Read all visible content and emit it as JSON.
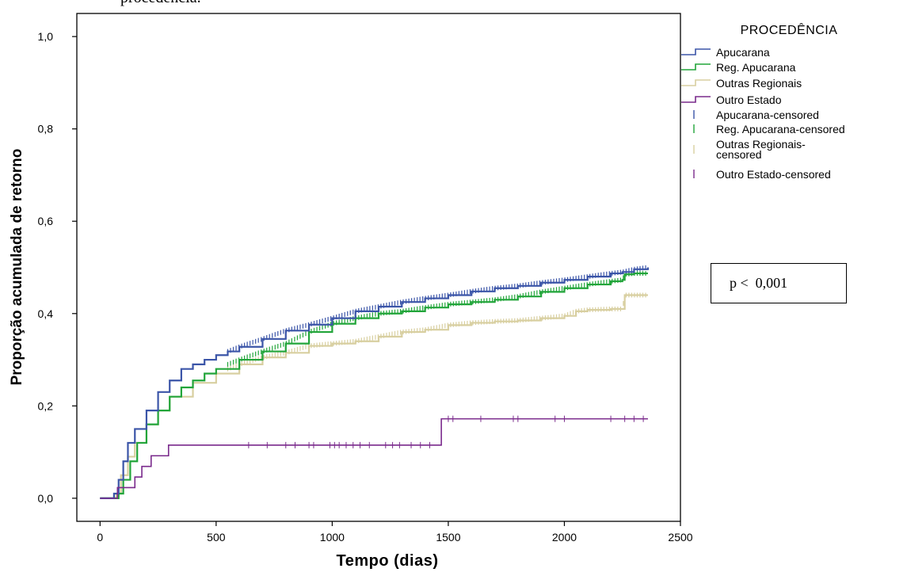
{
  "caption_fragment": "procedência.",
  "annotation": "p <  0,001",
  "colors": {
    "apucarana": "#3b55a8",
    "reg_apucarana": "#22a53a",
    "outras_regionais": "#d8cfa0",
    "outro_estado": "#7a2a8c"
  },
  "chart_data": {
    "type": "line",
    "xlabel": "Tempo (dias)",
    "ylabel": "Proporção acumulada de retorno",
    "xlim": [
      -100,
      2500
    ],
    "ylim": [
      -0.05,
      1.05
    ],
    "xticks": [
      0,
      500,
      1000,
      1500,
      2000,
      2500
    ],
    "xtick_labels": [
      "0",
      "500",
      "1000",
      "1500",
      "2000",
      "2500"
    ],
    "yticks": [
      0.0,
      0.2,
      0.4,
      0.6,
      0.8,
      1.0
    ],
    "ytick_labels": [
      "0,0",
      "0,2",
      "0,4",
      "0,6",
      "0,8",
      "1,0"
    ],
    "grid": false,
    "legend_title": "PROCEDÊNCIA",
    "legend_position": "right",
    "legend": [
      {
        "label": "Apucarana",
        "kind": "line",
        "series": 0
      },
      {
        "label": "Reg. Apucarana",
        "kind": "line",
        "series": 1
      },
      {
        "label": "Outras Regionais",
        "kind": "line",
        "series": 2
      },
      {
        "label": "Outro Estado",
        "kind": "line",
        "series": 3
      },
      {
        "label": "Apucarana-censored",
        "kind": "censor",
        "series": 0
      },
      {
        "label": "Reg. Apucarana-censored",
        "kind": "censor",
        "series": 1
      },
      {
        "label": "Outras Regionais-\ncensored",
        "kind": "censor",
        "series": 2
      },
      {
        "label": "Outro Estado-censored",
        "kind": "censor",
        "series": 3
      }
    ],
    "series": [
      {
        "name": "Apucarana",
        "color": "#3b55a8",
        "x": [
          0,
          60,
          80,
          100,
          120,
          150,
          200,
          250,
          300,
          350,
          400,
          450,
          500,
          550,
          600,
          700,
          800,
          900,
          1000,
          1100,
          1200,
          1300,
          1400,
          1500,
          1600,
          1700,
          1800,
          1900,
          2000,
          2100,
          2200,
          2250,
          2300,
          2360
        ],
        "y": [
          0.0,
          0.01,
          0.04,
          0.08,
          0.12,
          0.15,
          0.19,
          0.23,
          0.255,
          0.28,
          0.29,
          0.3,
          0.31,
          0.318,
          0.328,
          0.345,
          0.363,
          0.376,
          0.39,
          0.405,
          0.415,
          0.425,
          0.433,
          0.44,
          0.448,
          0.455,
          0.46,
          0.467,
          0.473,
          0.48,
          0.487,
          0.49,
          0.496,
          0.5
        ],
        "censor_from_x": 550
      },
      {
        "name": "Reg. Apucarana",
        "color": "#22a53a",
        "x": [
          0,
          80,
          100,
          130,
          160,
          200,
          250,
          300,
          350,
          400,
          450,
          500,
          600,
          700,
          800,
          900,
          1000,
          1100,
          1200,
          1300,
          1400,
          1500,
          1600,
          1700,
          1800,
          1900,
          2000,
          2100,
          2200,
          2250,
          2260,
          2300,
          2360
        ],
        "y": [
          0.0,
          0.01,
          0.04,
          0.08,
          0.12,
          0.16,
          0.19,
          0.22,
          0.24,
          0.255,
          0.27,
          0.28,
          0.3,
          0.318,
          0.335,
          0.36,
          0.378,
          0.39,
          0.4,
          0.405,
          0.413,
          0.42,
          0.425,
          0.43,
          0.437,
          0.447,
          0.455,
          0.463,
          0.47,
          0.473,
          0.485,
          0.487,
          0.487
        ],
        "censor_from_x": 550
      },
      {
        "name": "Outras Regionais",
        "color": "#d8cfa0",
        "x": [
          0,
          70,
          90,
          120,
          150,
          200,
          250,
          300,
          400,
          500,
          600,
          700,
          800,
          900,
          1000,
          1100,
          1200,
          1300,
          1400,
          1500,
          1600,
          1700,
          1800,
          1900,
          2000,
          2050,
          2100,
          2200,
          2250,
          2260,
          2360
        ],
        "y": [
          0.0,
          0.01,
          0.05,
          0.09,
          0.12,
          0.16,
          0.19,
          0.22,
          0.25,
          0.27,
          0.29,
          0.305,
          0.315,
          0.33,
          0.335,
          0.34,
          0.35,
          0.36,
          0.365,
          0.375,
          0.38,
          0.383,
          0.385,
          0.39,
          0.395,
          0.405,
          0.408,
          0.41,
          0.41,
          0.44,
          0.44
        ],
        "censor_from_x": 550
      },
      {
        "name": "Outro Estado",
        "color": "#7a2a8c",
        "steps": [
          [
            0,
            0.0
          ],
          [
            75,
            0.023
          ],
          [
            150,
            0.046
          ],
          [
            180,
            0.069
          ],
          [
            220,
            0.092
          ],
          [
            295,
            0.115
          ],
          [
            1470,
            0.172
          ],
          [
            2360,
            0.172
          ]
        ],
        "censored_x": [
          640,
          720,
          800,
          840,
          900,
          920,
          990,
          1010,
          1030,
          1060,
          1090,
          1120,
          1160,
          1230,
          1260,
          1290,
          1340,
          1380,
          1420,
          1500,
          1520,
          1640,
          1780,
          1800,
          1960,
          2000,
          2200,
          2260,
          2300,
          2340
        ]
      }
    ]
  }
}
